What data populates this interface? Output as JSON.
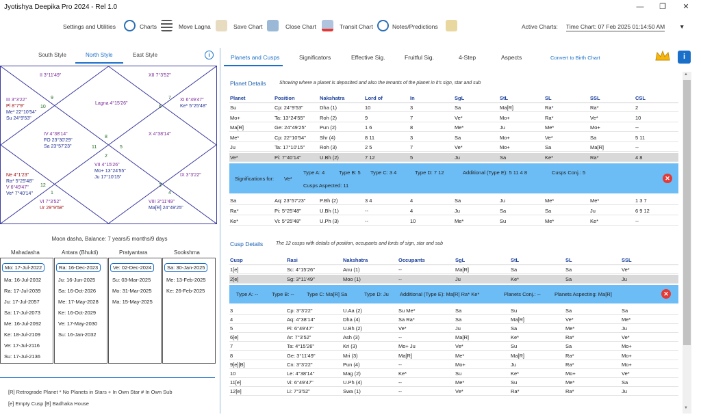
{
  "window": {
    "title": "Jyotishya Deepika Pro 2024 - Rel 1.0",
    "minimize": "—",
    "restore": "❐",
    "close": "✕"
  },
  "toolbar": {
    "settings": "Settings and Utilities",
    "charts": "Charts",
    "move_lagna": "Move Lagna",
    "save_chart": "Save Chart",
    "close_chart": "Close Chart",
    "transit_chart": "Transit Chart",
    "notes": "Notes/Predictions",
    "active_label": "Active Charts:",
    "active_value": "Time Chart: 07 Feb 2025 01:14:50 AM"
  },
  "left_tabs": [
    "South Style",
    "North Style",
    "East Style"
  ],
  "chart": {
    "h2": "II 3°11'49\"",
    "h12": "XII 7°3'52\"",
    "h3a": "III 3°3'22\"",
    "h3b": "Pl 8°7'9\"",
    "h3c": "Me* 22°10'54\"",
    "h3d": "Su 24°9'53\"",
    "lagna": "Lagna 4°15'26\"",
    "h11a": "XI 6°49'47\"",
    "h11b": "Ke* 5°25'48\"",
    "h4a": "IV 4°38'14\"",
    "h4b": "FO 23°30'29\"",
    "h4c": "Sa 23°57'23\"",
    "h10": "X 4°38'14\"",
    "h5a": "Ne 4°1'23\"",
    "h5b": "Ra* 5°25'48\"",
    "h5c": "V 6°49'47\"",
    "h5d": "Ve* 7°40'14\"",
    "h7a": "VII 4°15'26\"",
    "h7b": "Mo+ 13°24'55\"",
    "h7c": "Ju 17°10'15\"",
    "h9": "IX 3°3'22\"",
    "h6a": "VI 7°3'52\"",
    "h6b": "Ur 29°9'58\"",
    "h8a": "VIII 3°11'49\"",
    "h8b": "Ma[R] 24°49'25\"",
    "n9": "9",
    "n10": "10",
    "n6": "6",
    "n7": "7",
    "n8": "8",
    "n11": "11",
    "n5": "5",
    "n12": "12",
    "n1": "1",
    "n2": "2",
    "n3": "3",
    "n4": "4"
  },
  "dasha": {
    "balance": "Moon dasha, Balance: 7 years/5 months/9 days",
    "headers": [
      "Mahadasha",
      "Antara (Bhukti)",
      "Pratyantara",
      "Sookshma"
    ],
    "col1": [
      "Mo: 17-Jul-2022",
      "Ma: 16-Jul-2032",
      "Ra: 17-Jul-2039",
      "Ju: 17-Jul-2057",
      "Sa: 17-Jul-2073",
      "Me: 16-Jul-2092",
      "Ke: 18-Jul-2109",
      "Ve: 17-Jul-2116",
      "Su: 17-Jul-2136"
    ],
    "col2": [
      "Ra: 16-Dec-2023",
      "Ju: 16-Jun-2025",
      "Sa: 16-Oct-2026",
      "Me: 17-May-2028",
      "Ke: 16-Oct-2029",
      "Ve: 17-May-2030",
      "Su: 16-Jan-2032"
    ],
    "col3": [
      "Ve: 02-Dec-2024",
      "Su: 03-Mar-2025",
      "Mo: 31-Mar-2025",
      "Ma: 15-May-2025"
    ],
    "col4": [
      "Sa: 30-Jan-2025",
      "Me: 13-Feb-2025",
      "Ke: 26-Feb-2025"
    ]
  },
  "legend": {
    "l1": "[R]   Retrograde Planet   *   No Planets in Stars   +   In Own Star   #   In Own Sub",
    "l2": "[e]   Empty Cusp   [B]   Badhaka House"
  },
  "right_tabs": [
    "Planets and Cusps",
    "Significators",
    "Effective Sig.",
    "Fruitful Sig.",
    "4-Step",
    "Aspects",
    "Convert to Birth Chart"
  ],
  "planet": {
    "title": "Planet Details",
    "desc": "Showing where a planet is deposited and also the tenants of the planet in it's sign, star and sub",
    "headers": [
      "Planet",
      "Position",
      "Nakshatra",
      "Lord of",
      "In",
      "SgL",
      "StL",
      "SL",
      "SSL",
      "CSL"
    ],
    "rows": [
      [
        "Su",
        "Cp: 24°9'53\"",
        "Dha (1)",
        "10",
        "3",
        "Sa",
        "Ma[R]",
        "Ra*",
        "Ra*",
        "2"
      ],
      [
        "Mo+",
        "Ta: 13°24'55\"",
        "Roh (2)",
        "9",
        "7",
        "Ve*",
        "Mo+",
        "Ra*",
        "Ve*",
        "10"
      ],
      [
        "Ma[R]",
        "Ge: 24°49'25\"",
        "Pun (2)",
        "1  6",
        "8",
        "Me*",
        "Ju",
        "Me*",
        "Mo+",
        "--"
      ],
      [
        "Me*",
        "Cp: 22°10'54\"",
        "Shr (4)",
        "8  11",
        "3",
        "Sa",
        "Mo+",
        "Ve*",
        "Sa",
        "5  11"
      ],
      [
        "Ju",
        "Ta: 17°10'15\"",
        "Roh (3)",
        "2  5",
        "7",
        "Ve*",
        "Mo+",
        "Sa",
        "Ma[R]",
        "--"
      ],
      [
        "Ve*",
        "Pi: 7°40'14\"",
        "U.Bh (2)",
        "7  12",
        "5",
        "Ju",
        "Sa",
        "Ke*",
        "Ra*",
        "4  8"
      ]
    ],
    "rows2": [
      [
        "Sa",
        "Aq: 23°57'23\"",
        "P.Bh (2)",
        "3  4",
        "4",
        "Sa",
        "Ju",
        "Me*",
        "Me*",
        "1  3  7"
      ],
      [
        "Ra*",
        "Pi: 5°25'48\"",
        "U.Bh (1)",
        "--",
        "4",
        "Ju",
        "Sa",
        "Sa",
        "Ju",
        "6  9  12"
      ],
      [
        "Ke*",
        "Vi: 5°25'48\"",
        "U.Ph (3)",
        "--",
        "10",
        "Me*",
        "Su",
        "Me*",
        "Ke*",
        "--"
      ]
    ],
    "sig": {
      "label": "Significations for:",
      "planet": "Ve*",
      "ta": "Type A:   4",
      "tb": "Type B:   5",
      "tc": "Type C:   3  4",
      "td": "Type D:   7  12",
      "add": "Additional (Type E):   5  11  4  8",
      "conj": "Cusps Conj.:   5",
      "asp": "Cusps Aspected:   11"
    }
  },
  "cusp": {
    "title": "Cusp Details",
    "desc": "The 12 cusps with details of position, occupants and lords of sign, star and sub",
    "headers": [
      "Cusp",
      "Rasi",
      "Nakshatra",
      "Occupants",
      "SgL",
      "StL",
      "SL",
      "SSL"
    ],
    "rows": [
      [
        "1[e]",
        "Sc: 4°15'26\"",
        "Anu (1)",
        "--",
        "Ma[R]",
        "Sa",
        "Sa",
        "Ve*"
      ],
      [
        "2[e]",
        "Sg: 3°11'49\"",
        "Moo (1)",
        "--",
        "Ju",
        "Ke*",
        "Sa",
        "Ju"
      ]
    ],
    "sig": {
      "ta": "Type A:   --",
      "tb": "Type B:   --",
      "tc": "Type C:   Ma[R]  Sa",
      "td": "Type D:   Ju",
      "add": "Additional (Type E):   Ma[R]  Ra*  Ke*",
      "conj": "Planets Conj.:   --",
      "asp": "Planets Aspecting:   Ma[R]"
    },
    "rows2": [
      [
        "3",
        "Cp: 3°3'22\"",
        "U.Aa (2)",
        "Su  Me*",
        "Sa",
        "Su",
        "Sa",
        "Sa"
      ],
      [
        "4",
        "Aq: 4°38'14\"",
        "Dha (4)",
        "Sa  Ra*",
        "Sa",
        "Ma[R]",
        "Ve*",
        "Me*"
      ],
      [
        "5",
        "Pi: 6°49'47\"",
        "U.Bh (2)",
        "Ve*",
        "Ju",
        "Sa",
        "Me*",
        "Ju"
      ],
      [
        "6[e]",
        "Ar: 7°3'52\"",
        "Ash (3)",
        "--",
        "Ma[R]",
        "Ke*",
        "Ra*",
        "Ve*"
      ],
      [
        "7",
        "Ta: 4°15'26\"",
        "Kri (3)",
        "Mo+  Ju",
        "Ve*",
        "Su",
        "Sa",
        "Mo+"
      ],
      [
        "8",
        "Ge: 3°11'49\"",
        "Mri (3)",
        "Ma[R]",
        "Me*",
        "Ma[R]",
        "Ra*",
        "Mo+"
      ],
      [
        "9[e][B]",
        "Cn: 3°3'22\"",
        "Pun (4)",
        "--",
        "Mo+",
        "Ju",
        "Ra*",
        "Mo+"
      ],
      [
        "10",
        "Le: 4°38'14\"",
        "Mag (2)",
        "Ke*",
        "Su",
        "Ke*",
        "Mo+",
        "Ve*"
      ],
      [
        "11[e]",
        "Vi: 6°49'47\"",
        "U.Ph (4)",
        "--",
        "Me*",
        "Su",
        "Me*",
        "Sa"
      ],
      [
        "12[e]",
        "Li: 7°3'52\"",
        "Swa (1)",
        "--",
        "Ve*",
        "Ra*",
        "Ra*",
        "Ju"
      ]
    ]
  },
  "colors": {
    "accent": "#1a6fc9",
    "highlight": "#6cbcf5",
    "close": "#e53935"
  }
}
